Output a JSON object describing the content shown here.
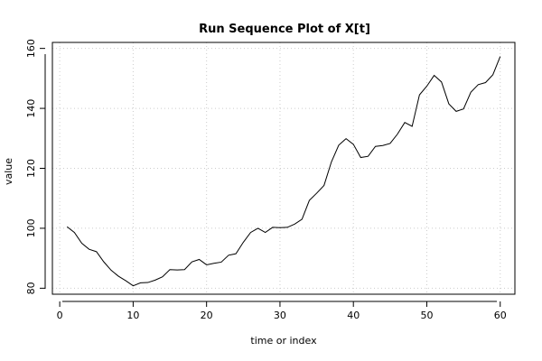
{
  "chart_data": {
    "type": "line",
    "title": "Run Sequence Plot of X[t]",
    "xlabel": "time or index",
    "ylabel": "value",
    "xlim": [
      -1,
      62
    ],
    "ylim": [
      78,
      162
    ],
    "xticks": [
      0,
      10,
      20,
      30,
      40,
      50,
      60
    ],
    "yticks": [
      80,
      100,
      120,
      140,
      160
    ],
    "grid": true,
    "line_color": "#000000",
    "x": [
      1,
      2,
      3,
      4,
      5,
      6,
      7,
      8,
      9,
      10,
      11,
      12,
      13,
      14,
      15,
      16,
      17,
      18,
      19,
      20,
      21,
      22,
      23,
      24,
      25,
      26,
      27,
      28,
      29,
      30,
      31,
      32,
      33,
      34,
      35,
      36,
      37,
      38,
      39,
      40,
      41,
      42,
      43,
      44,
      45,
      46,
      47,
      48,
      49,
      50,
      51,
      52,
      53,
      54,
      55,
      56,
      57,
      58,
      59,
      60
    ],
    "y": [
      100.5,
      98.6,
      95.0,
      93.0,
      92.2,
      88.8,
      86.0,
      84.0,
      82.5,
      80.8,
      81.8,
      81.9,
      82.7,
      83.8,
      86.2,
      86.1,
      86.2,
      88.8,
      89.6,
      87.8,
      88.3,
      88.7,
      91.0,
      91.5,
      95.3,
      98.6,
      100.0,
      98.6,
      100.3,
      100.2,
      100.3,
      101.4,
      103.0,
      109.3,
      111.7,
      114.3,
      122.1,
      127.7,
      129.9,
      128.0,
      123.6,
      124.0,
      127.3,
      127.6,
      128.3,
      131.4,
      135.3,
      134.0,
      144.5,
      147.4,
      151.0,
      148.8,
      141.5,
      139.0,
      139.8,
      145.4,
      147.9,
      148.6,
      151.2,
      157.3
    ]
  }
}
